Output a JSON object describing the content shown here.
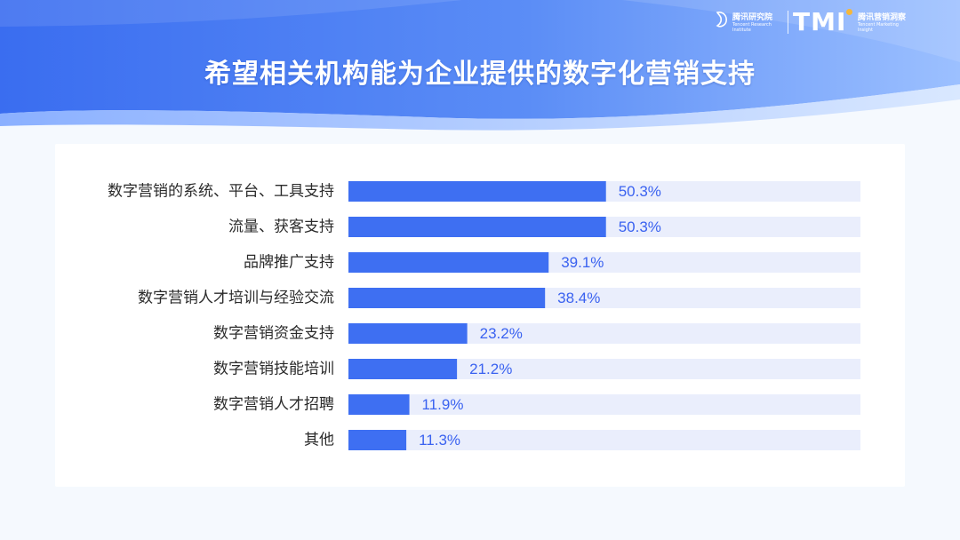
{
  "header": {
    "title": "希望相关机构能为企业提供的数字化营销支持",
    "logo_left_cn": "腾讯研究院",
    "logo_left_en": "Tencent Research Institute",
    "logo_tmi": "TMI",
    "logo_right_cn": "腾讯营销洞察",
    "logo_right_en": "Tencent Marketing Insight"
  },
  "colors": {
    "bar": "#3e6ff2",
    "track": "#eaeefc",
    "value_text": "#3a62f0",
    "banner_from": "#3f74ee",
    "banner_to": "#a8c8ff"
  },
  "chart_data": {
    "type": "bar",
    "orientation": "horizontal",
    "categories": [
      "数字营销的系统、平台、工具支持",
      "流量、获客支持",
      "品牌推广支持",
      "数字营销人才培训与经验交流",
      "数字营销资金支持",
      "数字营销技能培训",
      "数字营销人才招聘",
      "其他"
    ],
    "values": [
      50.3,
      50.3,
      39.1,
      38.4,
      23.2,
      21.2,
      11.9,
      11.3
    ],
    "value_labels": [
      "50.3%",
      "50.3%",
      "39.1%",
      "38.4%",
      "23.2%",
      "21.2%",
      "11.9%",
      "11.3%"
    ],
    "xlim": [
      0,
      100
    ],
    "grid": false,
    "legend": "none"
  }
}
